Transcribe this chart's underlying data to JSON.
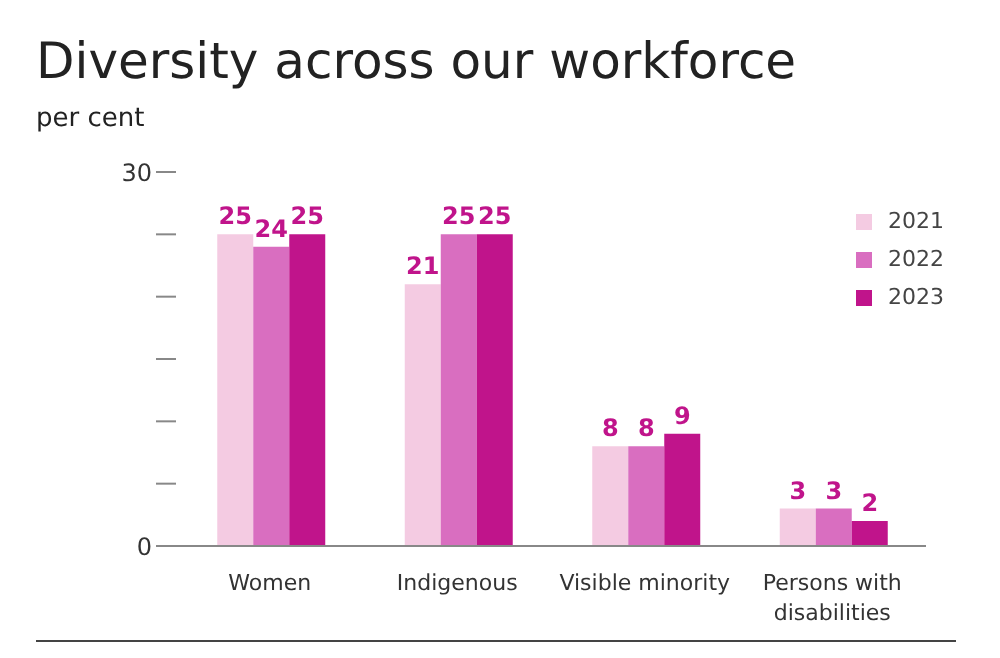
{
  "chart_data": {
    "type": "bar",
    "title": "Diversity across our workforce",
    "subtitle": "per cent",
    "categories": [
      "Women",
      "Indigenous",
      "Visible minority",
      "Persons with disabilities"
    ],
    "series": [
      {
        "name": "2021",
        "color": "#f4cbe2",
        "values": [
          25,
          21,
          8,
          3
        ]
      },
      {
        "name": "2022",
        "color": "#d96ec0",
        "values": [
          24,
          25,
          8,
          3
        ]
      },
      {
        "name": "2023",
        "color": "#c0148b",
        "values": [
          25,
          25,
          9,
          2
        ]
      }
    ],
    "ylim": [
      0,
      30
    ],
    "yticks": [
      0,
      {
        "value": 5,
        "label": null
      },
      {
        "value": 10,
        "label": null
      },
      {
        "value": 15,
        "label": null
      },
      {
        "value": 20,
        "label": null
      },
      {
        "value": 25,
        "label": null
      },
      30
    ],
    "data_labels": true,
    "legend": "top right",
    "grid": false
  }
}
